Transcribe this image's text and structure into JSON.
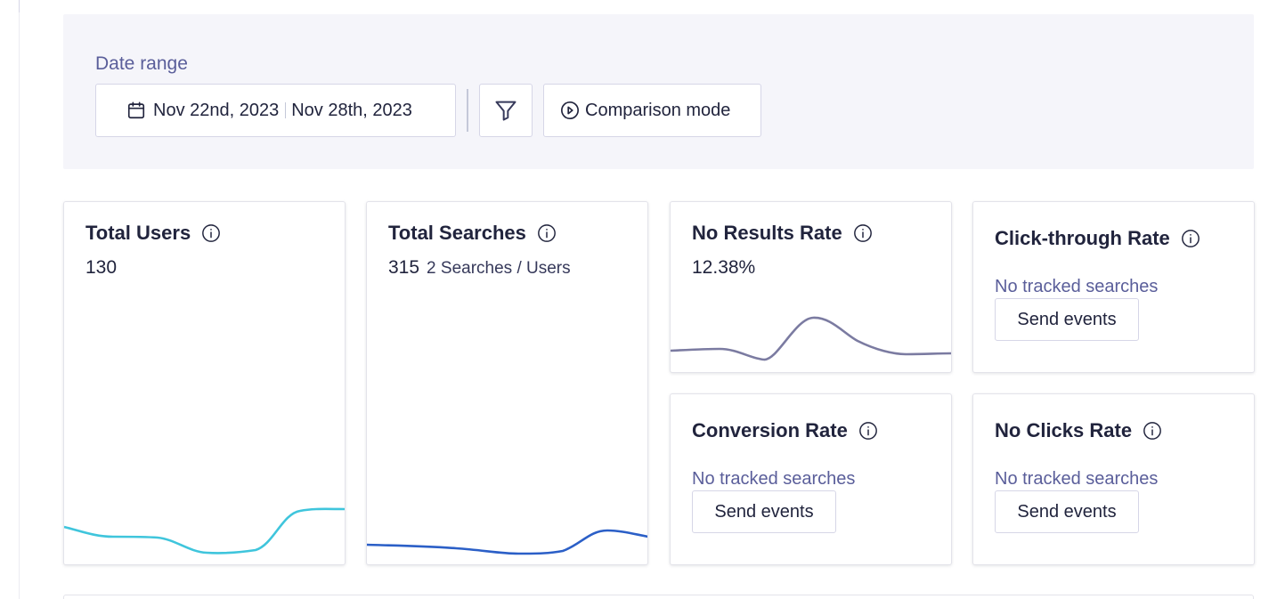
{
  "filters": {
    "date_range_label": "Date range",
    "start_date": "Nov 22nd, 2023",
    "end_date": "Nov 28th, 2023",
    "comparison_label": "Comparison mode"
  },
  "cards": {
    "total_users": {
      "title": "Total Users",
      "value": "130"
    },
    "total_searches": {
      "title": "Total Searches",
      "value": "315",
      "sub": "2 Searches / Users"
    },
    "no_results_rate": {
      "title": "No Results Rate",
      "value": "12.38%"
    },
    "click_through_rate": {
      "title": "Click-through Rate",
      "empty_text": "No tracked searches",
      "button": "Send events"
    },
    "conversion_rate": {
      "title": "Conversion Rate",
      "empty_text": "No tracked searches",
      "button": "Send events"
    },
    "no_clicks_rate": {
      "title": "No Clicks Rate",
      "empty_text": "No tracked searches",
      "button": "Send events"
    }
  },
  "colors": {
    "users_line": "#3fc5dc",
    "searches_line": "#2b5fc7",
    "no_results_line": "#7b7ba1"
  }
}
